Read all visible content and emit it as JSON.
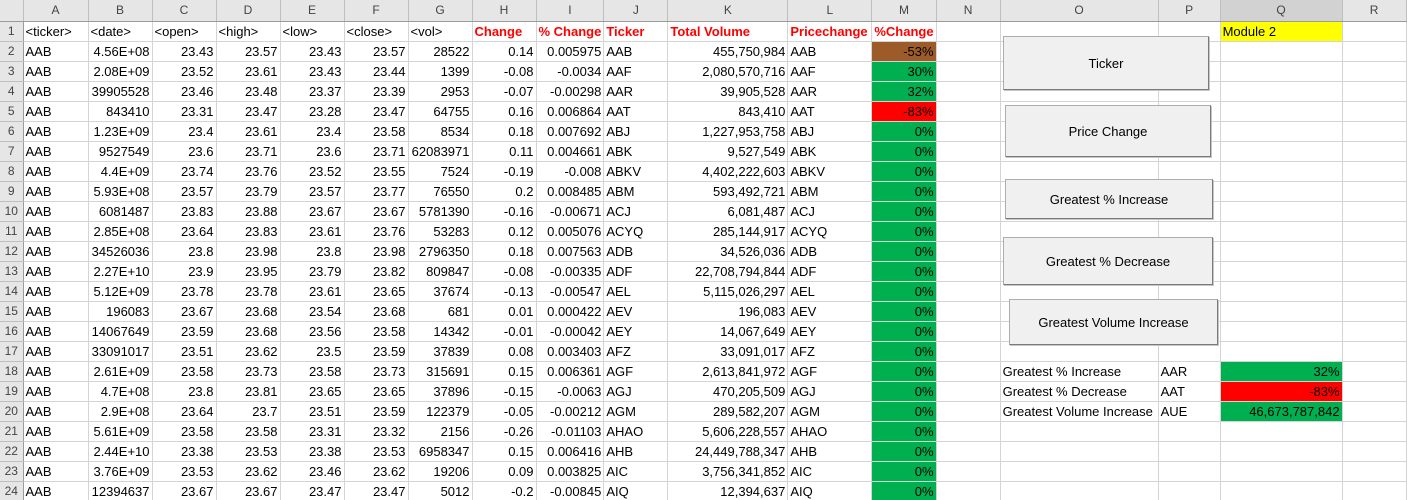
{
  "columns": [
    "A",
    "B",
    "C",
    "D",
    "E",
    "F",
    "G",
    "H",
    "I",
    "J",
    "K",
    "L",
    "M",
    "N",
    "O",
    "P",
    "Q",
    "R"
  ],
  "headers": [
    "<ticker>",
    "<date>",
    "<open>",
    "<high>",
    "<low>",
    "<close>",
    "<vol>",
    "Change",
    "% Change",
    "Ticker",
    "Total Volume",
    "Pricechange",
    "%Change"
  ],
  "rows": [
    [
      "1",
      "",
      "",
      "",
      "",
      "",
      "",
      "",
      "",
      "",
      "",
      "",
      "",
      ""
    ],
    [
      "2",
      "AAB",
      "4.56E+08",
      "23.43",
      "23.57",
      "23.43",
      "23.57",
      "28522",
      "0.14",
      "0.005975",
      "AAB",
      "455,750,984",
      "AAB",
      "-53%"
    ],
    [
      "3",
      "AAB",
      "2.08E+09",
      "23.52",
      "23.61",
      "23.43",
      "23.44",
      "1399",
      "-0.08",
      "-0.0034",
      "AAF",
      "2,080,570,716",
      "AAF",
      "30%"
    ],
    [
      "4",
      "AAB",
      "39905528",
      "23.46",
      "23.48",
      "23.37",
      "23.39",
      "2953",
      "-0.07",
      "-0.00298",
      "AAR",
      "39,905,528",
      "AAR",
      "32%"
    ],
    [
      "5",
      "AAB",
      "843410",
      "23.31",
      "23.47",
      "23.28",
      "23.47",
      "64755",
      "0.16",
      "0.006864",
      "AAT",
      "843,410",
      "AAT",
      "-83%"
    ],
    [
      "6",
      "AAB",
      "1.23E+09",
      "23.4",
      "23.61",
      "23.4",
      "23.58",
      "8534",
      "0.18",
      "0.007692",
      "ABJ",
      "1,227,953,758",
      "ABJ",
      "0%"
    ],
    [
      "7",
      "AAB",
      "9527549",
      "23.6",
      "23.71",
      "23.6",
      "23.71",
      "62083971",
      "0.11",
      "0.004661",
      "ABK",
      "9,527,549",
      "ABK",
      "0%"
    ],
    [
      "8",
      "AAB",
      "4.4E+09",
      "23.74",
      "23.76",
      "23.52",
      "23.55",
      "7524",
      "-0.19",
      "-0.008",
      "ABKV",
      "4,402,222,603",
      "ABKV",
      "0%"
    ],
    [
      "9",
      "AAB",
      "5.93E+08",
      "23.57",
      "23.79",
      "23.57",
      "23.77",
      "76550",
      "0.2",
      "0.008485",
      "ABM",
      "593,492,721",
      "ABM",
      "0%"
    ],
    [
      "10",
      "AAB",
      "6081487",
      "23.83",
      "23.88",
      "23.67",
      "23.67",
      "5781390",
      "-0.16",
      "-0.00671",
      "ACJ",
      "6,081,487",
      "ACJ",
      "0%"
    ],
    [
      "11",
      "AAB",
      "2.85E+08",
      "23.64",
      "23.83",
      "23.61",
      "23.76",
      "53283",
      "0.12",
      "0.005076",
      "ACYQ",
      "285,144,917",
      "ACYQ",
      "0%"
    ],
    [
      "12",
      "AAB",
      "34526036",
      "23.8",
      "23.98",
      "23.8",
      "23.98",
      "2796350",
      "0.18",
      "0.007563",
      "ADB",
      "34,526,036",
      "ADB",
      "0%"
    ],
    [
      "13",
      "AAB",
      "2.27E+10",
      "23.9",
      "23.95",
      "23.79",
      "23.82",
      "809847",
      "-0.08",
      "-0.00335",
      "ADF",
      "22,708,794,844",
      "ADF",
      "0%"
    ],
    [
      "14",
      "AAB",
      "5.12E+09",
      "23.78",
      "23.78",
      "23.61",
      "23.65",
      "37674",
      "-0.13",
      "-0.00547",
      "AEL",
      "5,115,026,297",
      "AEL",
      "0%"
    ],
    [
      "15",
      "AAB",
      "196083",
      "23.67",
      "23.68",
      "23.54",
      "23.68",
      "681",
      "0.01",
      "0.000422",
      "AEV",
      "196,083",
      "AEV",
      "0%"
    ],
    [
      "16",
      "AAB",
      "14067649",
      "23.59",
      "23.68",
      "23.56",
      "23.58",
      "14342",
      "-0.01",
      "-0.00042",
      "AEY",
      "14,067,649",
      "AEY",
      "0%"
    ],
    [
      "17",
      "AAB",
      "33091017",
      "23.51",
      "23.62",
      "23.5",
      "23.59",
      "37839",
      "0.08",
      "0.003403",
      "AFZ",
      "33,091,017",
      "AFZ",
      "0%"
    ],
    [
      "18",
      "AAB",
      "2.61E+09",
      "23.58",
      "23.73",
      "23.58",
      "23.73",
      "315691",
      "0.15",
      "0.006361",
      "AGF",
      "2,613,841,972",
      "AGF",
      "0%"
    ],
    [
      "19",
      "AAB",
      "4.7E+08",
      "23.8",
      "23.81",
      "23.65",
      "23.65",
      "37896",
      "-0.15",
      "-0.0063",
      "AGJ",
      "470,205,509",
      "AGJ",
      "0%"
    ],
    [
      "20",
      "AAB",
      "2.9E+08",
      "23.64",
      "23.7",
      "23.51",
      "23.59",
      "122379",
      "-0.05",
      "-0.00212",
      "AGM",
      "289,582,207",
      "AGM",
      "0%"
    ],
    [
      "21",
      "AAB",
      "5.61E+09",
      "23.58",
      "23.58",
      "23.31",
      "23.32",
      "2156",
      "-0.26",
      "-0.01103",
      "AHAO",
      "5,606,228,557",
      "AHAO",
      "0%"
    ],
    [
      "22",
      "AAB",
      "2.44E+10",
      "23.38",
      "23.53",
      "23.38",
      "23.53",
      "6958347",
      "0.15",
      "0.006416",
      "AHB",
      "24,449,788,347",
      "AHB",
      "0%"
    ],
    [
      "23",
      "AAB",
      "3.76E+09",
      "23.53",
      "23.62",
      "23.46",
      "23.62",
      "19206",
      "0.09",
      "0.003825",
      "AIC",
      "3,756,341,852",
      "AIC",
      "0%"
    ],
    [
      "24",
      "AAB",
      "12394637",
      "23.67",
      "23.67",
      "23.47",
      "23.47",
      "5012",
      "-0.2",
      "-0.00845",
      "AIQ",
      "12,394,637",
      "AIQ",
      "0%"
    ]
  ],
  "pct_colors": [
    "brown",
    "green",
    "green",
    "red",
    "green",
    "green",
    "green",
    "green",
    "green",
    "green",
    "green",
    "green",
    "green",
    "green",
    "green",
    "green",
    "green",
    "green",
    "green",
    "green",
    "green",
    "green",
    "green"
  ],
  "module_label": "Module 2",
  "summary": [
    {
      "label": "Greatest % Increase",
      "ticker": "AAR",
      "value": "32%",
      "color": "green"
    },
    {
      "label": "Greatest % Decrease",
      "ticker": "AAT",
      "value": "-83%",
      "color": "red"
    },
    {
      "label": "Greatest Volume Increase",
      "ticker": "AUE",
      "value": "46,673,787,842",
      "color": "green"
    }
  ],
  "buttons": {
    "ticker": "Ticker",
    "price_change": "Price Change",
    "greatest_increase": "Greatest % Increase",
    "greatest_decrease": "Greatest % Decrease",
    "greatest_volume": "Greatest Volume Increase"
  },
  "colors": {
    "green": "#00b050",
    "red": "#ff0000",
    "brown": "#9c5b29",
    "yellow": "#ffff00"
  }
}
